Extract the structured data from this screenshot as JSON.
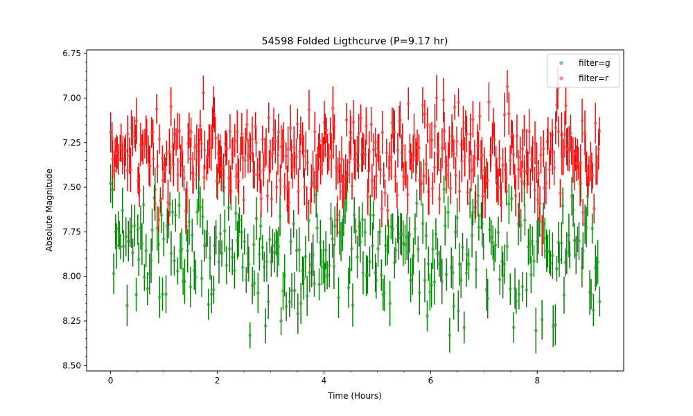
{
  "chart_data": {
    "type": "scatter",
    "title": "54598 Folded Ligthcurve (P=9.17 hr)",
    "xlabel": "Time (Hours)",
    "ylabel": "Absolute Magnitude",
    "xlim": [
      -0.45,
      9.62
    ],
    "ylim": [
      8.53,
      6.73
    ],
    "y_inverted": true,
    "x_ticks": [
      0,
      2,
      4,
      6,
      8
    ],
    "x_tick_labels": [
      "0",
      "2",
      "4",
      "6",
      "8"
    ],
    "y_ticks": [
      6.75,
      7.0,
      7.25,
      7.5,
      7.75,
      8.0,
      8.25,
      8.5
    ],
    "y_tick_labels": [
      "6.75",
      "7.00",
      "7.25",
      "7.50",
      "7.75",
      "8.00",
      "8.25",
      "8.50"
    ],
    "grid": false,
    "legend_position": "top-right",
    "legend": [
      "filter=g",
      "filter=r"
    ],
    "series": [
      {
        "name": "filter=g",
        "color": "#008000",
        "n_points": 330,
        "x_range": [
          0.0,
          9.17
        ],
        "mean_mag": 7.87,
        "mag_spread": 0.17,
        "mag_range": [
          7.48,
          8.33
        ],
        "typical_error": 0.1
      },
      {
        "name": "filter=r",
        "color": "#ff0000",
        "n_points": 420,
        "x_range": [
          0.0,
          9.17
        ],
        "mean_mag": 7.33,
        "mag_spread": 0.14,
        "mag_range": [
          6.89,
          7.78
        ],
        "typical_error": 0.1
      }
    ]
  }
}
